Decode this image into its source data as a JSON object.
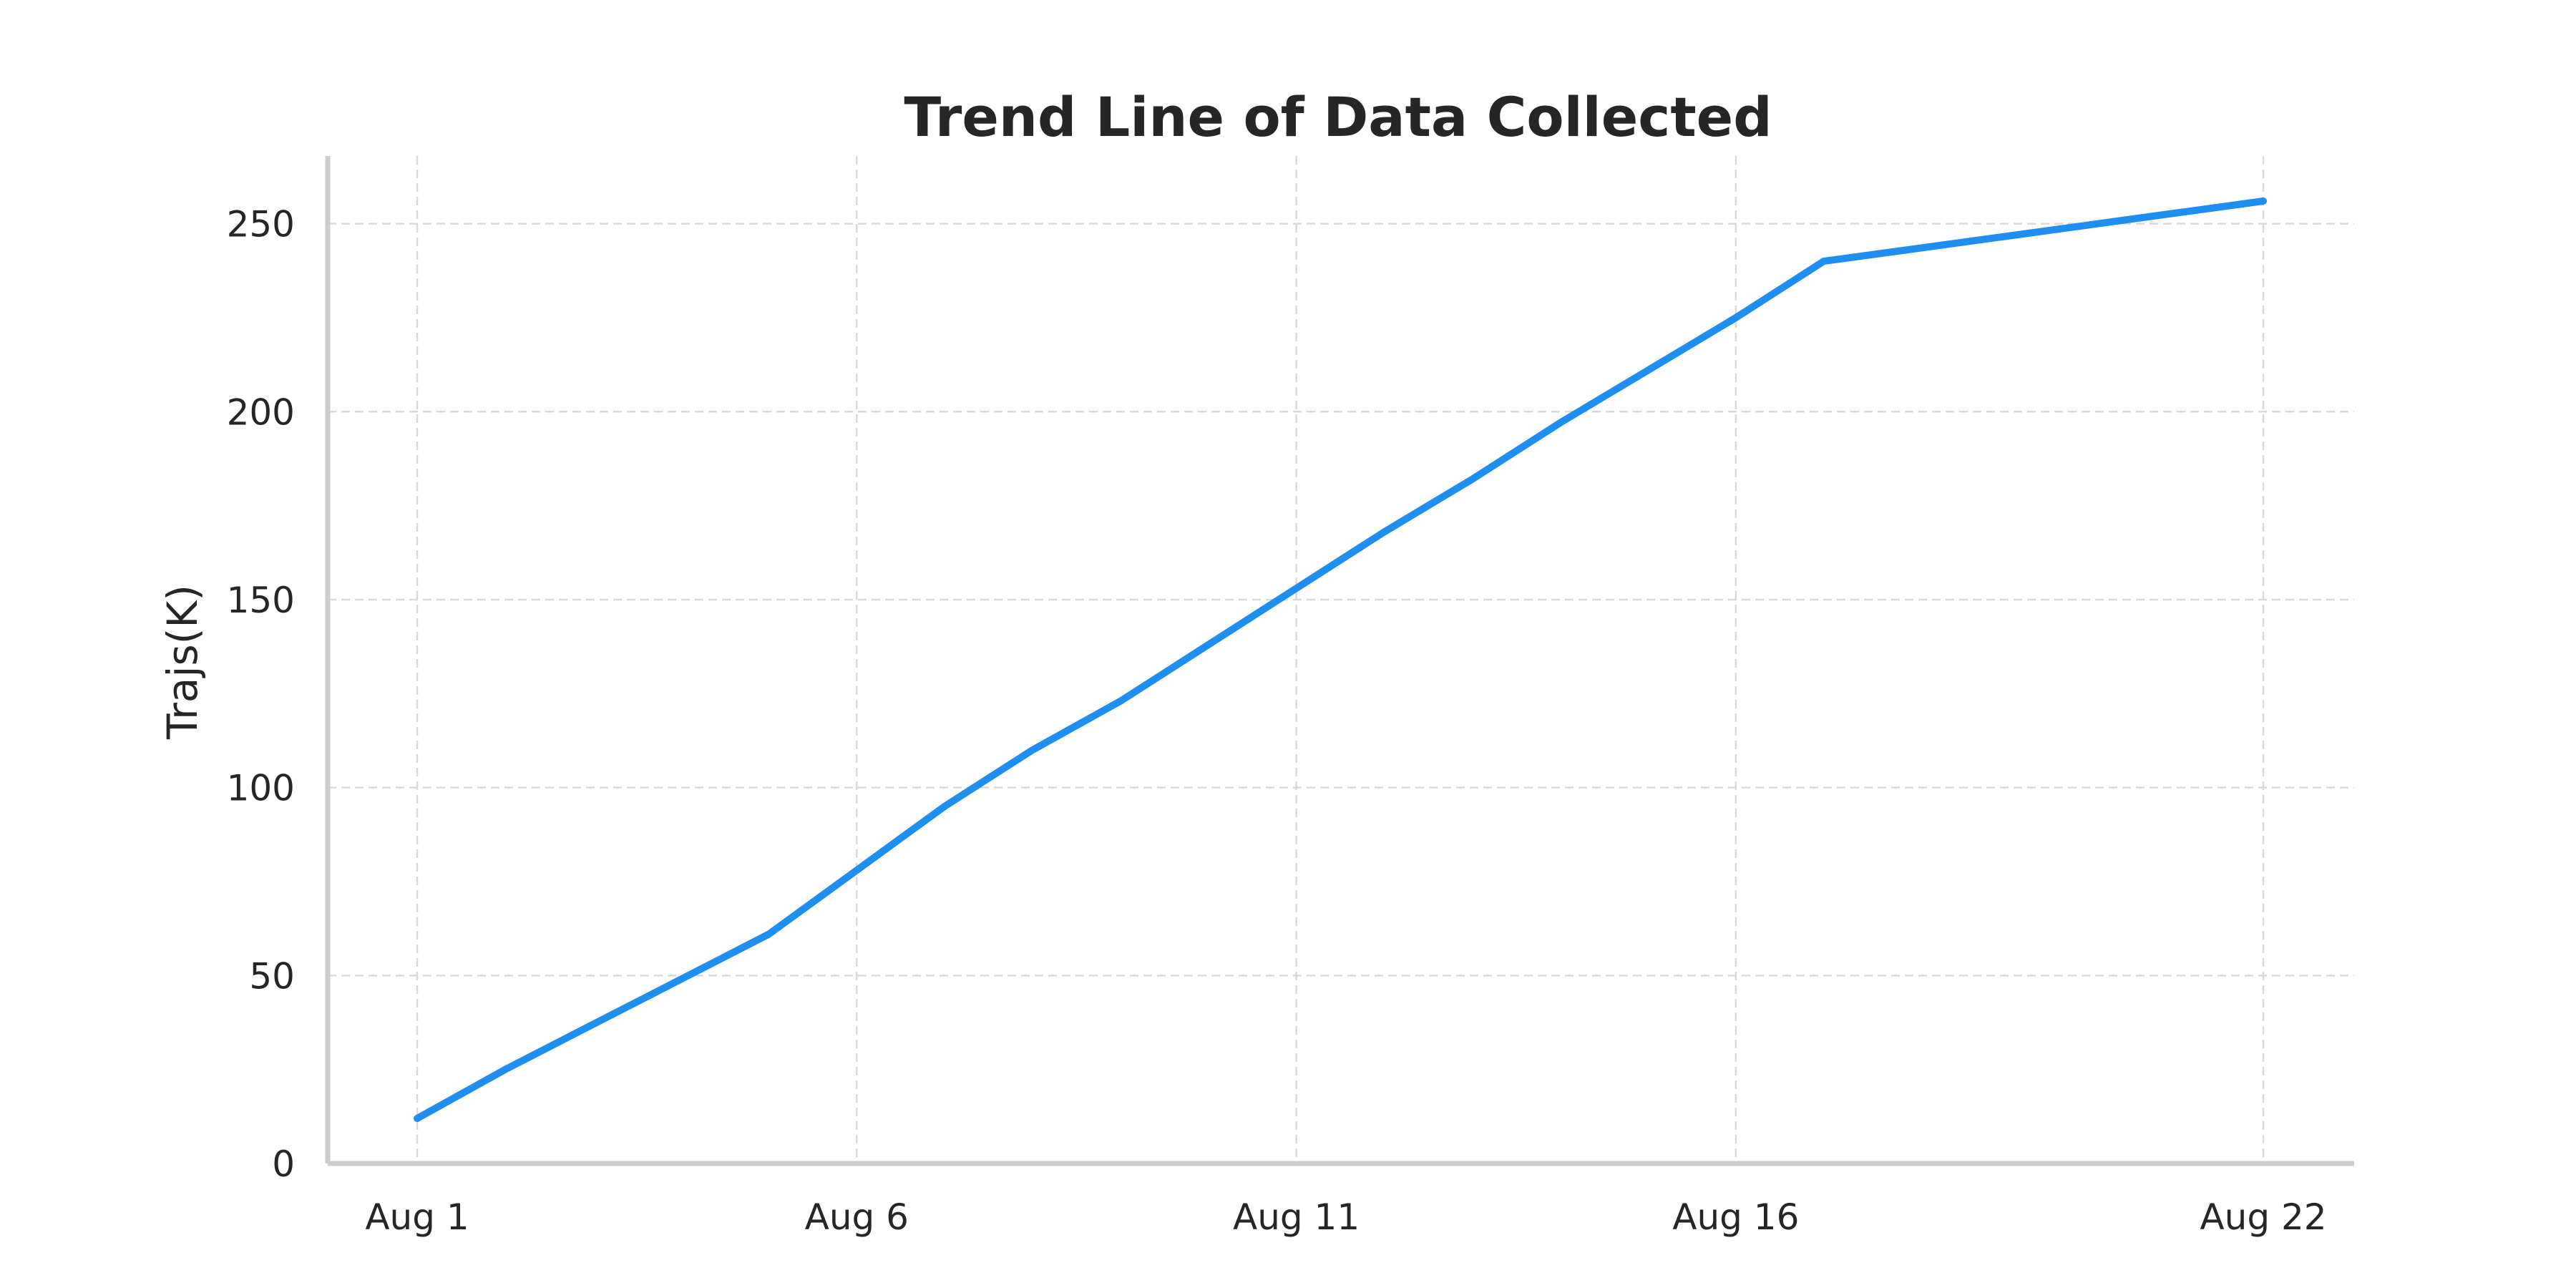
{
  "chart_data": {
    "type": "line",
    "title": "Trend Line of Data Collected",
    "xlabel": "",
    "ylabel": "Trajs(K)",
    "x": [
      "Aug 1",
      "Aug 2",
      "Aug 3",
      "Aug 4",
      "Aug 5",
      "Aug 6",
      "Aug 7",
      "Aug 8",
      "Aug 9",
      "Aug 10",
      "Aug 11",
      "Aug 12",
      "Aug 13",
      "Aug 14",
      "Aug 15",
      "Aug 16",
      "Aug 17",
      "Aug 22"
    ],
    "x_ticks": [
      "Aug 1",
      "Aug 6",
      "Aug 11",
      "Aug 16",
      "Aug 22"
    ],
    "series": [
      {
        "values": [
          12,
          25,
          37,
          49,
          61,
          78,
          95,
          110,
          123,
          138,
          153,
          168,
          182,
          197,
          211,
          225,
          240,
          256
        ],
        "color": "#1f8ef1"
      }
    ],
    "ylim": [
      0,
      268
    ],
    "y_ticks": [
      0,
      50,
      100,
      150,
      200,
      250
    ],
    "grid": true,
    "legend": "none"
  }
}
